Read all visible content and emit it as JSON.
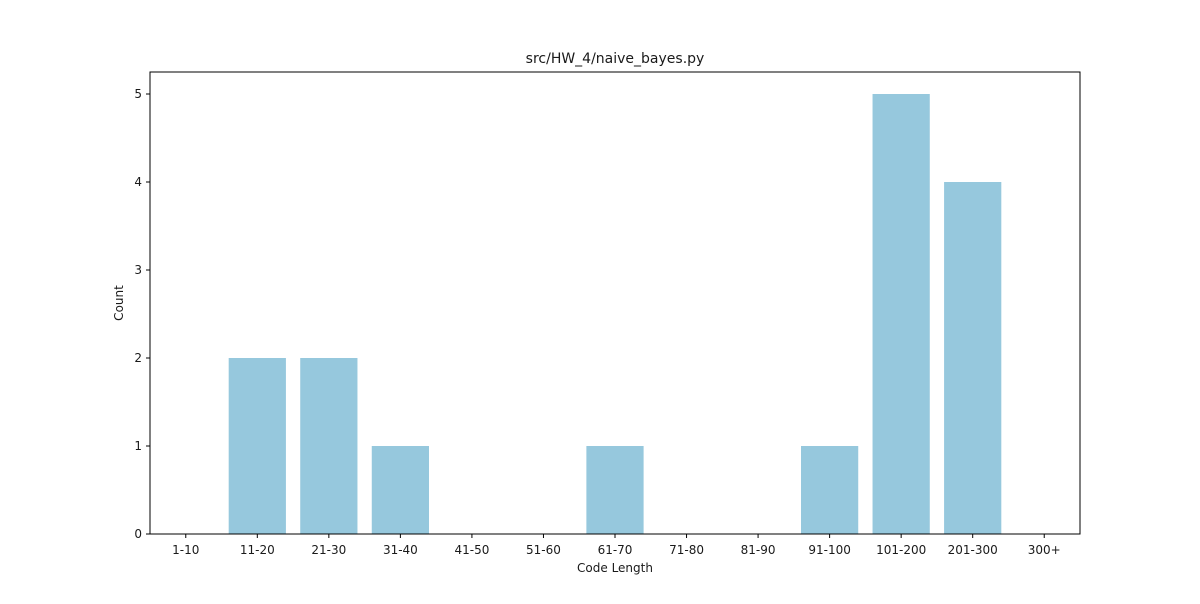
{
  "chart_data": {
    "type": "bar",
    "title": "src/HW_4/naive_bayes.py",
    "xlabel": "Code Length",
    "ylabel": "Count",
    "categories": [
      "1-10",
      "11-20",
      "21-30",
      "31-40",
      "41-50",
      "51-60",
      "61-70",
      "71-80",
      "81-90",
      "91-100",
      "101-200",
      "201-300",
      "300+"
    ],
    "values": [
      0,
      2,
      2,
      1,
      0,
      0,
      1,
      0,
      0,
      1,
      5,
      4,
      0
    ],
    "ylim": [
      0,
      5.25
    ],
    "yticks": [
      0,
      1,
      2,
      3,
      4,
      5
    ],
    "grid": false,
    "bar_color": "#96c8dd"
  }
}
